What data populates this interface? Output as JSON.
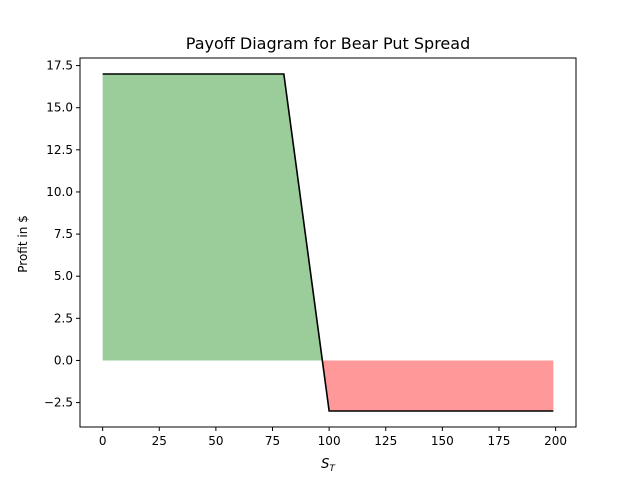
{
  "chart_data": {
    "type": "line",
    "title": "Payoff Diagram for Bear Put Spread",
    "xlabel_main": "S",
    "xlabel_sub": "T",
    "ylabel": "Profit in $",
    "xlim": [
      -10,
      209
    ],
    "ylim": [
      -3.95,
      17.95
    ],
    "xticks": [
      0,
      25,
      50,
      75,
      100,
      125,
      150,
      175,
      200
    ],
    "yticks": [
      -2.5,
      0.0,
      2.5,
      5.0,
      7.5,
      10.0,
      12.5,
      15.0,
      17.5
    ],
    "grid": false,
    "series": [
      {
        "x": [
          0,
          80,
          100,
          199
        ],
        "y": [
          17,
          17,
          -3,
          -3
        ],
        "color": "#000000"
      }
    ],
    "fills": {
      "profit_color": "#9ACD9A",
      "loss_color": "#FF9999",
      "breakeven_x": 97
    }
  }
}
